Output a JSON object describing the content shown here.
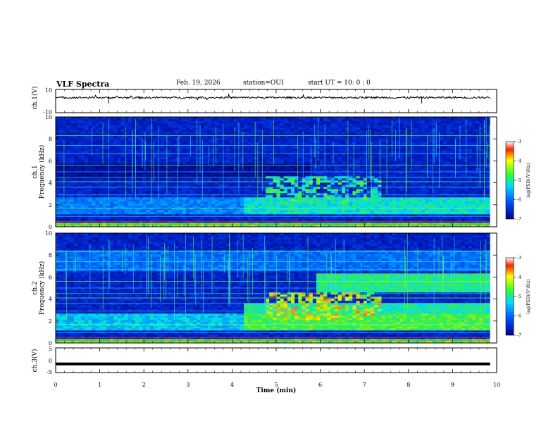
{
  "header": {
    "title": "VLF Spectra",
    "date": "Feb. 19, 2026",
    "station": "station=OUI",
    "start_ut": "start  UT =   10: 0  : 0"
  },
  "chart_data": [
    {
      "type": "line",
      "title": "ch.1(V)",
      "ylabel": "ch.1(V)",
      "ylim": [
        -10,
        10
      ],
      "yticks": [
        "10",
        "-10"
      ],
      "description_value_level": 3,
      "x_range_min": [
        0,
        9.85
      ]
    },
    {
      "type": "heatmap",
      "title": "ch.1 spectrogram",
      "ylabel": "ch.1\nFrequency (kHz)",
      "ylabel_lines": [
        "ch.1",
        "Frequency  (kHz)"
      ],
      "ylim": [
        0,
        10
      ],
      "yticks": [
        "0",
        "2",
        "4",
        "6",
        "8",
        "10"
      ],
      "xlim": [
        0,
        10
      ],
      "colorbar": {
        "label": "log(PSD)(V²/Hz)",
        "range": [
          -7,
          -3
        ],
        "ticks": [
          "-3",
          "-4",
          "-5",
          "-6",
          "-7"
        ]
      }
    },
    {
      "type": "heatmap",
      "title": "ch.2 spectrogram",
      "ylabel_lines": [
        "ch.2",
        "Frequency  (kHz)"
      ],
      "ylim": [
        0,
        10
      ],
      "yticks": [
        "0",
        "2",
        "4",
        "6",
        "8",
        "10"
      ],
      "xlim": [
        0,
        10
      ],
      "colorbar": {
        "label": "log(PSD)(V²/Hz)",
        "range": [
          -7,
          -3
        ],
        "ticks": [
          "-3",
          "-4",
          "-5",
          "-6",
          "-7"
        ]
      }
    },
    {
      "type": "line",
      "title": "ch.3(V)",
      "ylabel": "ch.3(V)",
      "ylim": [
        -5,
        5
      ],
      "yticks": [
        "5",
        "0",
        "-5"
      ],
      "level": -1.5
    }
  ],
  "xaxis": {
    "label": "Time  (min)",
    "ticks": [
      "0",
      "1",
      "2",
      "3",
      "4",
      "5",
      "6",
      "7",
      "8",
      "9",
      "10"
    ],
    "range": [
      0,
      10
    ],
    "data_end": 9.85
  },
  "colors": {
    "deep": "#001a8c",
    "blue": "#0a3cd8",
    "cyan": "#00c8ff",
    "green": "#3cf03c",
    "yellow": "#f0f000",
    "red": "#ff2020"
  }
}
